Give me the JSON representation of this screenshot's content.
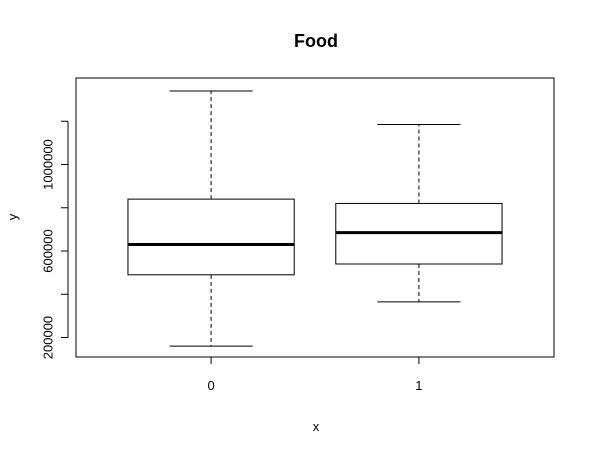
{
  "chart_data": {
    "type": "boxplot",
    "title": "Food",
    "xlabel": "x",
    "ylabel": "y",
    "categories": [
      "0",
      "1"
    ],
    "boxes": [
      {
        "category": "0",
        "whisker_low": 160000,
        "q1": 490000,
        "median": 630000,
        "q3": 840000,
        "whisker_high": 1340000
      },
      {
        "category": "1",
        "whisker_low": 365000,
        "q1": 540000,
        "median": 685000,
        "q3": 820000,
        "whisker_high": 1185000
      }
    ],
    "ylim": [
      110000,
      1400000
    ],
    "y_ticks": [
      200000,
      400000,
      600000,
      800000,
      1000000,
      1200000
    ],
    "y_tick_labels": [
      "200000",
      "",
      "600000",
      "",
      "1000000",
      ""
    ],
    "box_color": "#ffffff",
    "line_color": "#000000"
  }
}
